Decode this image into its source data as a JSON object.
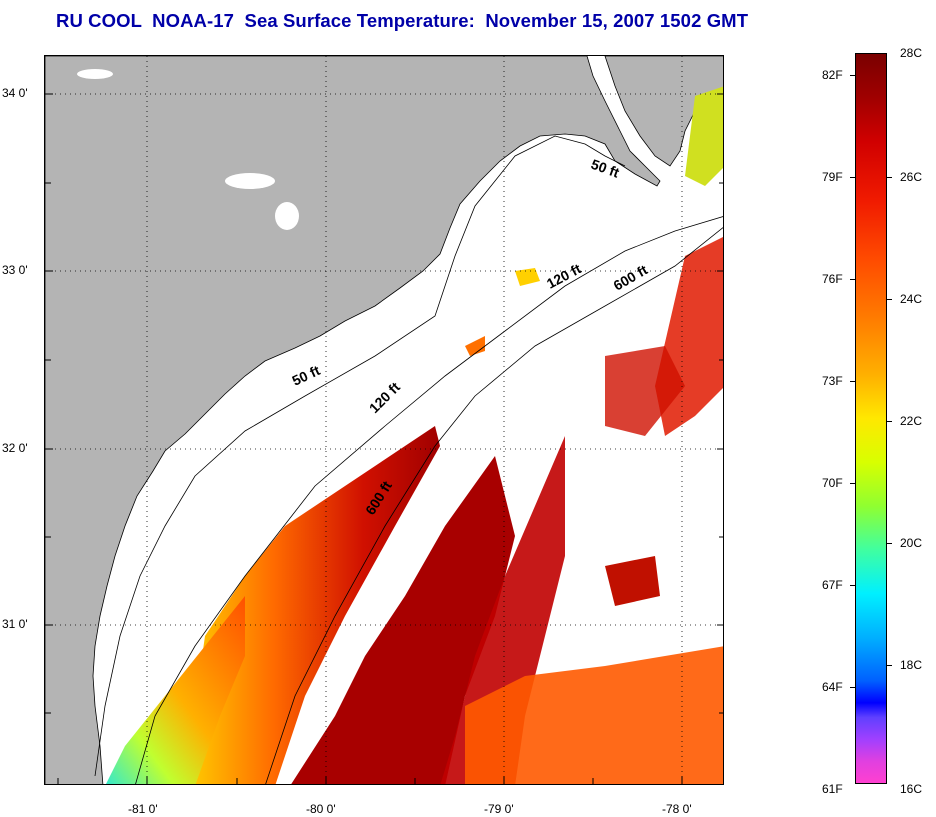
{
  "title": "RU COOL  NOAA-17  Sea Surface Temperature:  November 15, 2007 1502 GMT",
  "map": {
    "lat_labels": [
      "34 0'",
      "33 0'",
      "32 0'",
      "31 0'"
    ],
    "lon_labels": [
      "-81 0'",
      "-80 0'",
      "-79 0'",
      "-78 0'"
    ],
    "isobath_labels": [
      "50 ft",
      "50 ft",
      "120 ft",
      "120 ft",
      "600 ft",
      "600 ft"
    ]
  },
  "colorbar": {
    "fahrenheit": [
      "82F",
      "79F",
      "76F",
      "73F",
      "70F",
      "67F",
      "64F",
      "61F"
    ],
    "celsius": [
      "28C",
      "26C",
      "24C",
      "22C",
      "20C",
      "18C",
      "16C"
    ]
  },
  "colors": {
    "title": "#0000a8",
    "land": "#b4b4b4",
    "warmest": "#7a0000",
    "coolest": "#ff40d0"
  }
}
